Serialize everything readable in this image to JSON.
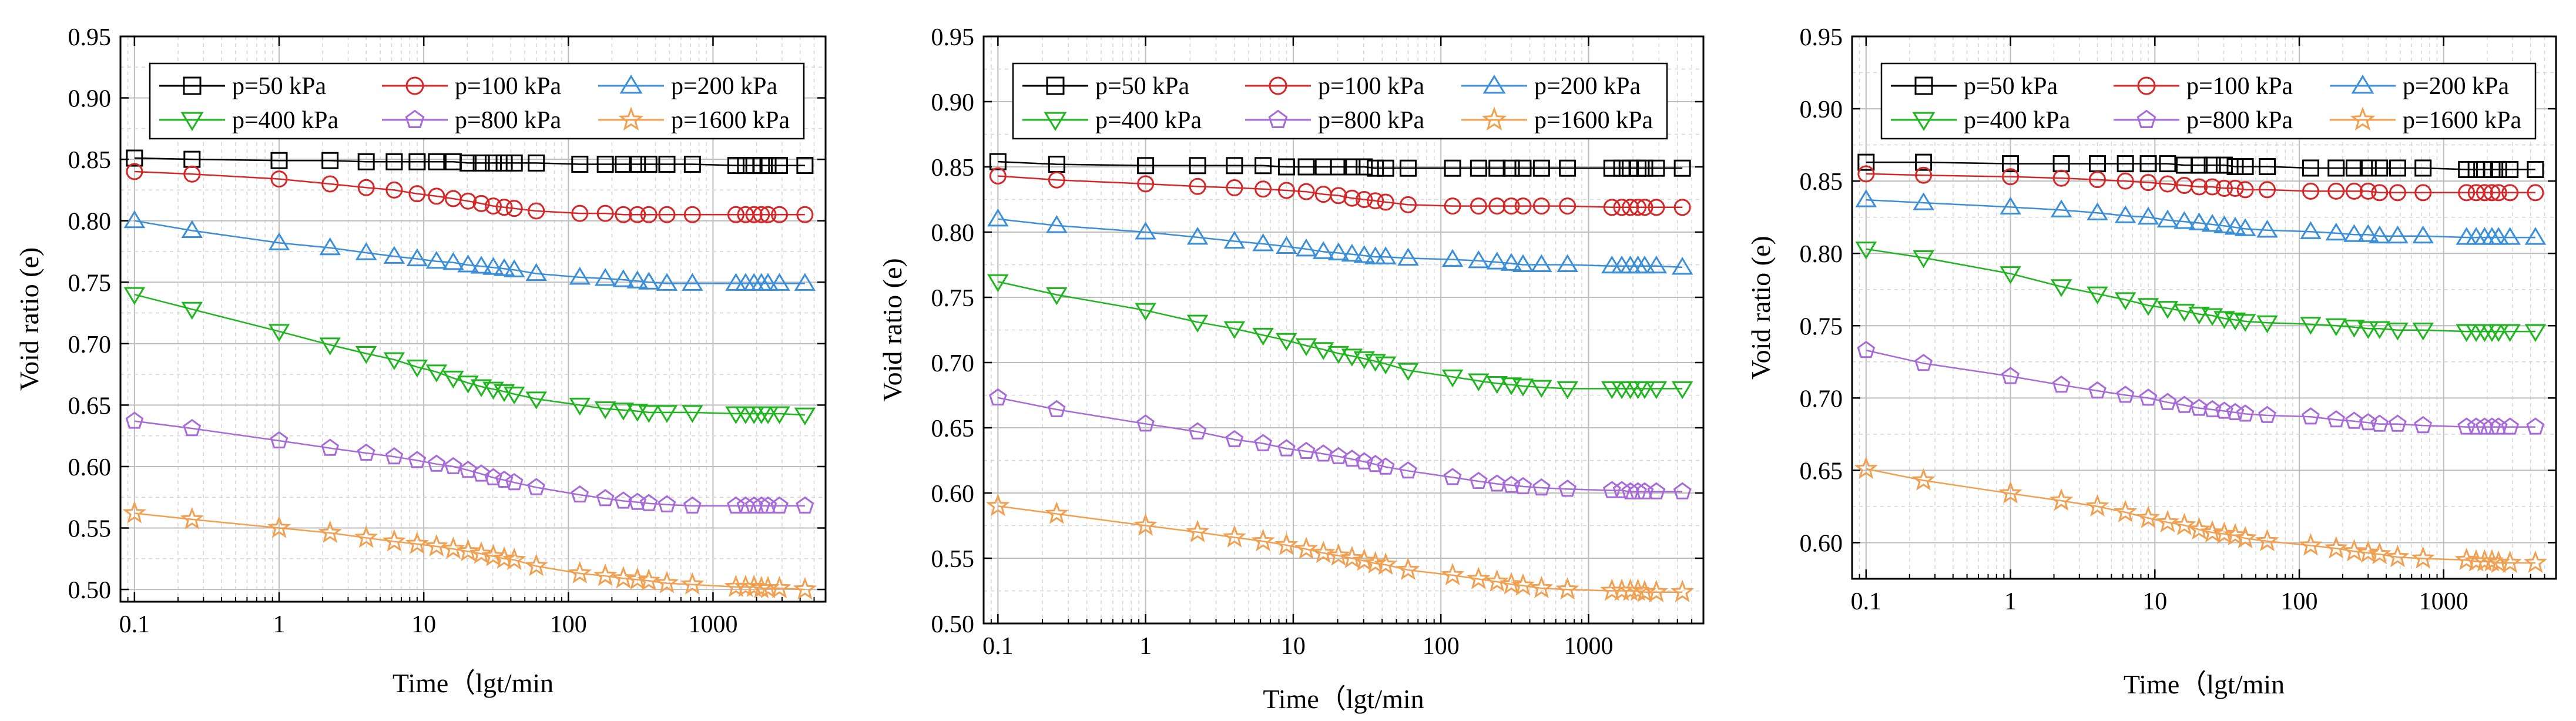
{
  "colors": {
    "p50": "#000000",
    "p100": "#d62728",
    "p200": "#3b8fd9",
    "p400": "#1fb51f",
    "p800": "#a66ad9",
    "p1600": "#f0a050"
  },
  "chart_data": [
    {
      "type": "line",
      "title": "",
      "xlabel": "Time（lgt/min",
      "ylabel": "Void ratio (e)",
      "xscale": "log",
      "xlim": [
        0.08,
        6000
      ],
      "ylim": [
        0.49,
        0.95
      ],
      "yticks": [
        "0.50",
        "0.55",
        "0.60",
        "0.65",
        "0.70",
        "0.75",
        "0.80",
        "0.85",
        "0.90",
        "0.95"
      ],
      "xticks": [
        "0.1",
        "1",
        "10",
        "100",
        "1000"
      ],
      "legend_position": "top-left",
      "x": [
        0.1,
        0.25,
        1,
        2.25,
        4,
        6.25,
        9,
        12.25,
        16,
        20.25,
        25,
        30.25,
        36,
        42.25,
        60,
        120,
        180,
        240,
        300,
        360,
        480,
        720,
        1440,
        1680,
        1920,
        2160,
        2400,
        2880,
        4320
      ],
      "series": [
        {
          "name": "p=50 kPa",
          "marker": "square",
          "color_key": "p50",
          "values": [
            0.851,
            0.85,
            0.849,
            0.849,
            0.848,
            0.848,
            0.848,
            0.848,
            0.848,
            0.847,
            0.847,
            0.847,
            0.847,
            0.847,
            0.847,
            0.846,
            0.846,
            0.846,
            0.846,
            0.846,
            0.846,
            0.846,
            0.845,
            0.845,
            0.845,
            0.845,
            0.845,
            0.845,
            0.845
          ]
        },
        {
          "name": "p=100 kPa",
          "marker": "circle",
          "color_key": "p100",
          "values": [
            0.84,
            0.838,
            0.834,
            0.83,
            0.827,
            0.825,
            0.822,
            0.82,
            0.818,
            0.816,
            0.814,
            0.812,
            0.811,
            0.81,
            0.808,
            0.806,
            0.806,
            0.805,
            0.805,
            0.805,
            0.805,
            0.805,
            0.805,
            0.805,
            0.805,
            0.805,
            0.805,
            0.805,
            0.805
          ]
        },
        {
          "name": "p=200 kPa",
          "marker": "triangle",
          "color_key": "p200",
          "values": [
            0.8,
            0.792,
            0.782,
            0.778,
            0.774,
            0.771,
            0.769,
            0.767,
            0.766,
            0.764,
            0.763,
            0.762,
            0.761,
            0.76,
            0.757,
            0.754,
            0.753,
            0.752,
            0.751,
            0.75,
            0.749,
            0.749,
            0.749,
            0.749,
            0.749,
            0.749,
            0.749,
            0.749,
            0.749
          ]
        },
        {
          "name": "p=400 kPa",
          "marker": "triangle-down",
          "color_key": "p400",
          "values": [
            0.74,
            0.728,
            0.71,
            0.699,
            0.692,
            0.687,
            0.681,
            0.677,
            0.672,
            0.668,
            0.665,
            0.663,
            0.661,
            0.659,
            0.655,
            0.65,
            0.647,
            0.646,
            0.645,
            0.644,
            0.644,
            0.644,
            0.643,
            0.643,
            0.643,
            0.643,
            0.643,
            0.643,
            0.642
          ]
        },
        {
          "name": "p=800 kPa",
          "marker": "pentagon",
          "color_key": "p800",
          "values": [
            0.637,
            0.631,
            0.621,
            0.615,
            0.611,
            0.608,
            0.605,
            0.602,
            0.6,
            0.597,
            0.594,
            0.591,
            0.589,
            0.587,
            0.583,
            0.577,
            0.574,
            0.572,
            0.571,
            0.57,
            0.569,
            0.568,
            0.568,
            0.568,
            0.568,
            0.568,
            0.568,
            0.568,
            0.568
          ]
        },
        {
          "name": "p=1600 kPa",
          "marker": "star",
          "color_key": "p1600",
          "values": [
            0.562,
            0.557,
            0.55,
            0.546,
            0.542,
            0.539,
            0.537,
            0.535,
            0.533,
            0.531,
            0.529,
            0.527,
            0.525,
            0.524,
            0.519,
            0.513,
            0.511,
            0.509,
            0.508,
            0.507,
            0.505,
            0.504,
            0.502,
            0.502,
            0.502,
            0.501,
            0.501,
            0.501,
            0.5
          ]
        }
      ]
    },
    {
      "type": "line",
      "title": "",
      "xlabel": "Time（lgt/min",
      "ylabel": "Void ratio (e)",
      "xscale": "log",
      "xlim": [
        0.08,
        6000
      ],
      "ylim": [
        0.5,
        0.95
      ],
      "yticks": [
        "0.50",
        "0.55",
        "0.60",
        "0.65",
        "0.70",
        "0.75",
        "0.80",
        "0.85",
        "0.90",
        "0.95"
      ],
      "xticks": [
        "0.1",
        "1",
        "10",
        "100",
        "1000"
      ],
      "legend_position": "top-left",
      "x": [
        0.1,
        0.25,
        1,
        2.25,
        4,
        6.25,
        9,
        12.25,
        16,
        20.25,
        25,
        30.25,
        36,
        42.25,
        60,
        120,
        180,
        240,
        300,
        360,
        480,
        720,
        1440,
        1680,
        1920,
        2160,
        2400,
        2880,
        4320
      ],
      "series": [
        {
          "name": "p=50 kPa",
          "marker": "square",
          "color_key": "p50",
          "values": [
            0.854,
            0.852,
            0.851,
            0.851,
            0.851,
            0.851,
            0.85,
            0.85,
            0.85,
            0.85,
            0.85,
            0.85,
            0.849,
            0.849,
            0.849,
            0.849,
            0.849,
            0.849,
            0.849,
            0.849,
            0.849,
            0.849,
            0.849,
            0.849,
            0.849,
            0.849,
            0.849,
            0.849,
            0.849
          ]
        },
        {
          "name": "p=100 kPa",
          "marker": "circle",
          "color_key": "p100",
          "values": [
            0.843,
            0.84,
            0.837,
            0.835,
            0.834,
            0.833,
            0.832,
            0.831,
            0.829,
            0.828,
            0.826,
            0.825,
            0.824,
            0.823,
            0.821,
            0.82,
            0.82,
            0.82,
            0.82,
            0.82,
            0.82,
            0.82,
            0.819,
            0.819,
            0.819,
            0.819,
            0.819,
            0.819,
            0.819
          ]
        },
        {
          "name": "p=200 kPa",
          "marker": "triangle",
          "color_key": "p200",
          "values": [
            0.81,
            0.805,
            0.8,
            0.796,
            0.793,
            0.791,
            0.789,
            0.787,
            0.785,
            0.784,
            0.783,
            0.782,
            0.781,
            0.781,
            0.78,
            0.779,
            0.778,
            0.777,
            0.776,
            0.775,
            0.775,
            0.775,
            0.774,
            0.774,
            0.774,
            0.774,
            0.774,
            0.774,
            0.773
          ]
        },
        {
          "name": "p=400 kPa",
          "marker": "triangle-down",
          "color_key": "p400",
          "values": [
            0.762,
            0.752,
            0.74,
            0.731,
            0.726,
            0.721,
            0.717,
            0.713,
            0.71,
            0.707,
            0.705,
            0.703,
            0.701,
            0.699,
            0.694,
            0.689,
            0.686,
            0.684,
            0.683,
            0.682,
            0.681,
            0.68,
            0.68,
            0.68,
            0.68,
            0.68,
            0.68,
            0.68,
            0.68
          ]
        },
        {
          "name": "p=800 kPa",
          "marker": "pentagon",
          "color_key": "p800",
          "values": [
            0.673,
            0.664,
            0.653,
            0.647,
            0.641,
            0.638,
            0.634,
            0.632,
            0.63,
            0.628,
            0.626,
            0.624,
            0.622,
            0.62,
            0.617,
            0.612,
            0.609,
            0.607,
            0.606,
            0.605,
            0.604,
            0.603,
            0.602,
            0.602,
            0.601,
            0.601,
            0.601,
            0.601,
            0.601
          ]
        },
        {
          "name": "p=1600 kPa",
          "marker": "star",
          "color_key": "p1600",
          "values": [
            0.59,
            0.584,
            0.575,
            0.57,
            0.566,
            0.563,
            0.56,
            0.557,
            0.554,
            0.552,
            0.55,
            0.548,
            0.546,
            0.545,
            0.541,
            0.537,
            0.534,
            0.532,
            0.53,
            0.529,
            0.527,
            0.526,
            0.525,
            0.525,
            0.525,
            0.525,
            0.524,
            0.524,
            0.524
          ]
        }
      ]
    },
    {
      "type": "line",
      "title": "",
      "xlabel": "Time（lgt/min",
      "ylabel": "Void ratio (e)",
      "xscale": "log",
      "xlim": [
        0.08,
        6000
      ],
      "ylim": [
        0.575,
        0.95
      ],
      "yticks": [
        "0.60",
        "0.65",
        "0.70",
        "0.75",
        "0.80",
        "0.85",
        "0.90",
        "0.95"
      ],
      "xticks": [
        "0.1",
        "1",
        "10",
        "100",
        "1000"
      ],
      "legend_position": "top-left",
      "x": [
        0.1,
        0.25,
        1,
        2.25,
        4,
        6.25,
        9,
        12.25,
        16,
        20.25,
        25,
        30.25,
        36,
        42.25,
        60,
        120,
        180,
        240,
        300,
        360,
        480,
        720,
        1440,
        1680,
        1920,
        2160,
        2400,
        2880,
        4320
      ],
      "series": [
        {
          "name": "p=50 kPa",
          "marker": "square",
          "color_key": "p50",
          "values": [
            0.863,
            0.863,
            0.862,
            0.862,
            0.862,
            0.862,
            0.862,
            0.862,
            0.861,
            0.861,
            0.861,
            0.861,
            0.86,
            0.86,
            0.86,
            0.859,
            0.859,
            0.859,
            0.859,
            0.859,
            0.859,
            0.859,
            0.858,
            0.858,
            0.858,
            0.858,
            0.858,
            0.858,
            0.858
          ]
        },
        {
          "name": "p=100 kPa",
          "marker": "circle",
          "color_key": "p100",
          "values": [
            0.855,
            0.854,
            0.853,
            0.852,
            0.851,
            0.85,
            0.849,
            0.848,
            0.847,
            0.846,
            0.846,
            0.845,
            0.845,
            0.844,
            0.844,
            0.843,
            0.843,
            0.843,
            0.843,
            0.842,
            0.842,
            0.842,
            0.842,
            0.842,
            0.842,
            0.842,
            0.842,
            0.842,
            0.842
          ]
        },
        {
          "name": "p=200 kPa",
          "marker": "triangle",
          "color_key": "p200",
          "values": [
            0.837,
            0.835,
            0.832,
            0.83,
            0.828,
            0.826,
            0.825,
            0.823,
            0.822,
            0.821,
            0.82,
            0.819,
            0.818,
            0.817,
            0.816,
            0.815,
            0.814,
            0.813,
            0.813,
            0.812,
            0.812,
            0.812,
            0.811,
            0.811,
            0.811,
            0.811,
            0.811,
            0.811,
            0.811
          ]
        },
        {
          "name": "p=400 kPa",
          "marker": "triangle-down",
          "color_key": "p400",
          "values": [
            0.803,
            0.797,
            0.786,
            0.777,
            0.772,
            0.768,
            0.764,
            0.762,
            0.76,
            0.758,
            0.757,
            0.755,
            0.754,
            0.753,
            0.752,
            0.751,
            0.75,
            0.749,
            0.748,
            0.748,
            0.747,
            0.747,
            0.746,
            0.746,
            0.746,
            0.746,
            0.746,
            0.746,
            0.746
          ]
        },
        {
          "name": "p=800 kPa",
          "marker": "pentagon",
          "color_key": "p800",
          "values": [
            0.733,
            0.724,
            0.715,
            0.709,
            0.705,
            0.702,
            0.7,
            0.697,
            0.695,
            0.693,
            0.692,
            0.691,
            0.69,
            0.689,
            0.688,
            0.687,
            0.685,
            0.684,
            0.683,
            0.682,
            0.682,
            0.681,
            0.68,
            0.68,
            0.68,
            0.68,
            0.68,
            0.68,
            0.68
          ]
        },
        {
          "name": "p=1600 kPa",
          "marker": "star",
          "color_key": "p1600",
          "values": [
            0.651,
            0.643,
            0.634,
            0.629,
            0.625,
            0.621,
            0.617,
            0.614,
            0.612,
            0.609,
            0.607,
            0.606,
            0.605,
            0.603,
            0.601,
            0.598,
            0.596,
            0.594,
            0.593,
            0.592,
            0.59,
            0.589,
            0.588,
            0.587,
            0.587,
            0.587,
            0.586,
            0.586,
            0.586
          ]
        }
      ]
    }
  ]
}
